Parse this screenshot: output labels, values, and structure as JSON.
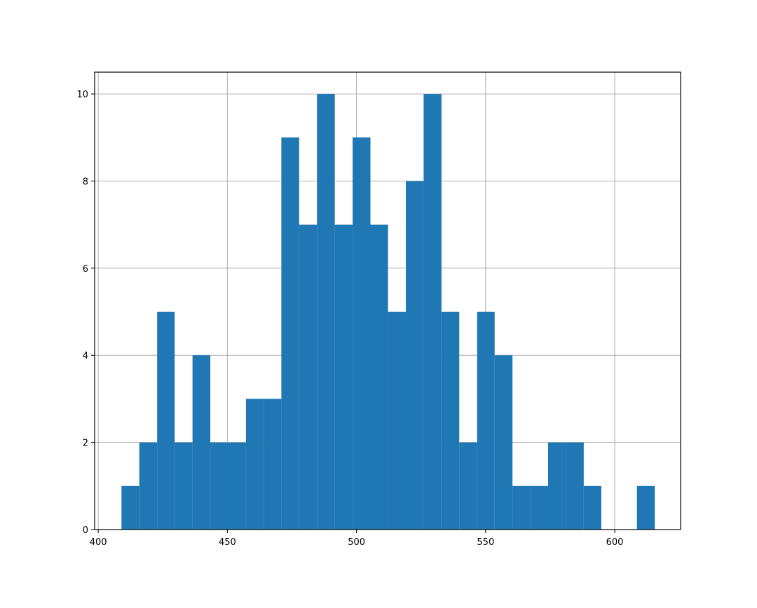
{
  "chart_data": {
    "type": "histogram",
    "bins": [
      409.0,
      415.9,
      422.8,
      429.6,
      436.5,
      443.4,
      450.3,
      457.2,
      464.1,
      470.9,
      477.8,
      484.7,
      491.6,
      498.5,
      505.4,
      512.2,
      519.1,
      526.0,
      532.9,
      539.8,
      546.7,
      553.5,
      560.4,
      567.3,
      574.2,
      581.1,
      588.0,
      594.8,
      601.7,
      608.6,
      615.5
    ],
    "counts": [
      1,
      2,
      5,
      2,
      4,
      2,
      2,
      3,
      3,
      9,
      7,
      10,
      7,
      9,
      7,
      5,
      8,
      10,
      5,
      2,
      5,
      4,
      1,
      1,
      2,
      2,
      1,
      0,
      0,
      1
    ],
    "color": "#1f77b4",
    "xlim": [
      398.6,
      625.5
    ],
    "xticks": [
      400,
      450,
      500,
      550,
      600
    ],
    "ylim": [
      0,
      10.5
    ],
    "yticks": [
      0,
      2,
      4,
      6,
      8,
      10
    ],
    "grid": true
  }
}
